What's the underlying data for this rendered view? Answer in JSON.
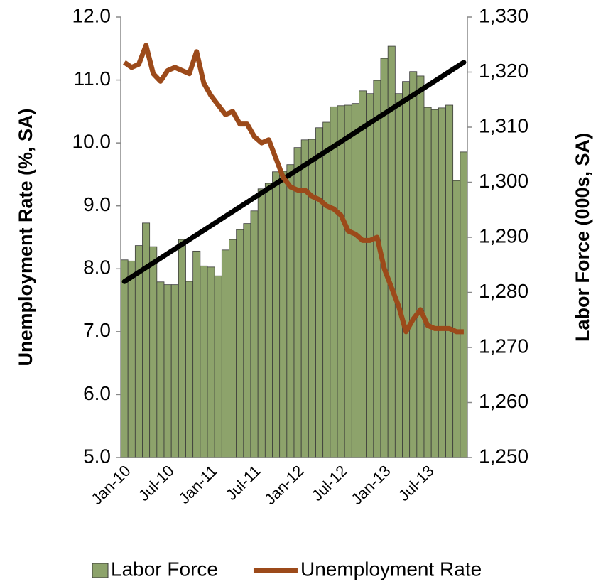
{
  "chart_data": {
    "type": "bar-line",
    "y_label": "Unemployment Rate (%, SA)",
    "y2_label": "Labor Force (000s, SA)",
    "categories": [
      "Jan-10",
      null,
      null,
      null,
      null,
      null,
      "Jul-10",
      null,
      null,
      null,
      null,
      null,
      "Jan-11",
      null,
      null,
      null,
      null,
      null,
      "Jul-11",
      null,
      null,
      null,
      null,
      null,
      "Jan-12",
      null,
      null,
      null,
      null,
      null,
      "Jul-12",
      null,
      null,
      null,
      null,
      null,
      "Jan-13",
      null,
      null,
      null,
      null,
      null,
      "Jul-13",
      null,
      null,
      null,
      null,
      null
    ],
    "series": [
      {
        "name": "Labor Force",
        "type": "bar",
        "axis": "y2",
        "color": "#8da36b",
        "values": [
          1285.9,
          1285.7,
          1288.5,
          1292.6,
          1288.3,
          1281.9,
          1281.4,
          1281.4,
          1289.6,
          1282.0,
          1287.5,
          1284.8,
          1284.6,
          1283.0,
          1287.7,
          1289.6,
          1291.4,
          1292.5,
          1294.8,
          1298.8,
          1299.8,
          1301.9,
          1302.0,
          1303.2,
          1306.3,
          1307.7,
          1307.8,
          1309.9,
          1310.9,
          1313.7,
          1313.9,
          1314.0,
          1314.3,
          1316.6,
          1316.1,
          1318.5,
          1322.5,
          1324.7,
          1316.1,
          1318.3,
          1320.1,
          1319.3,
          1313.6,
          1313.2,
          1313.5,
          1314.0,
          1300.3,
          1305.5
        ]
      },
      {
        "name": "Unemployment Rate",
        "type": "line",
        "axis": "y",
        "color": "#9c4a1a",
        "values": [
          11.28,
          11.2,
          11.25,
          11.55,
          11.1,
          10.98,
          11.15,
          11.2,
          11.15,
          11.1,
          11.45,
          10.95,
          10.75,
          10.6,
          10.45,
          10.5,
          10.3,
          10.3,
          10.1,
          10.0,
          10.05,
          9.75,
          9.45,
          9.3,
          9.25,
          9.25,
          9.15,
          9.1,
          9.0,
          8.95,
          8.85,
          8.6,
          8.55,
          8.45,
          8.45,
          8.5,
          8.0,
          7.7,
          7.4,
          7.0,
          7.2,
          7.35,
          7.1,
          7.05,
          7.05,
          7.05,
          7.0,
          7.0
        ]
      }
    ],
    "trendline": true,
    "trendline_color": "#000000",
    "ylim": [
      5,
      12
    ],
    "yticks": [
      {
        "value": 5,
        "label": "5.0"
      },
      {
        "value": 6,
        "label": "6.0"
      },
      {
        "value": 7,
        "label": "7.0"
      },
      {
        "value": 8,
        "label": "8.0"
      },
      {
        "value": 9,
        "label": "9.0"
      },
      {
        "value": 10,
        "label": "10.0"
      },
      {
        "value": 11,
        "label": "11.0"
      },
      {
        "value": 12,
        "label": "12.0"
      }
    ],
    "y2lim": [
      1250,
      1330
    ],
    "y2ticks": [
      {
        "value": 1250,
        "label": "1,250"
      },
      {
        "value": 1260,
        "label": "1,260"
      },
      {
        "value": 1270,
        "label": "1,270"
      },
      {
        "value": 1280,
        "label": "1,280"
      },
      {
        "value": 1290,
        "label": "1,290"
      },
      {
        "value": 1300,
        "label": "1,300"
      },
      {
        "value": 1310,
        "label": "1,310"
      },
      {
        "value": 1320,
        "label": "1,320"
      },
      {
        "value": 1330,
        "label": "1,330"
      }
    ],
    "legend": "bottom"
  }
}
